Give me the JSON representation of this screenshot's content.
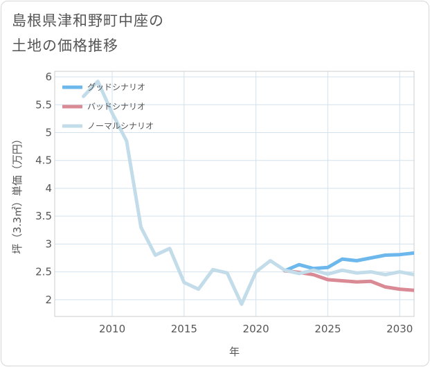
{
  "chart_data": {
    "type": "line",
    "title_line1": "島根県津和野町中座の",
    "title_line2": "土地の価格推移",
    "xlabel": "年",
    "ylabel": "坪（3.3㎡）単価（万円）",
    "xlim": [
      2006,
      2031
    ],
    "ylim": [
      1.7,
      6.1
    ],
    "x_ticks": [
      2010,
      2015,
      2020,
      2025,
      2030
    ],
    "y_ticks": [
      2,
      2.5,
      3,
      3.5,
      4,
      4.5,
      5,
      5.5,
      6
    ],
    "grid": true,
    "legend_position": "top-left",
    "series": [
      {
        "name": "グッドシナリオ",
        "color": "#6cb8ec",
        "x": [
          2022,
          2023,
          2024,
          2025,
          2026,
          2027,
          2028,
          2029,
          2030,
          2031
        ],
        "y": [
          2.52,
          2.63,
          2.56,
          2.58,
          2.73,
          2.7,
          2.75,
          2.8,
          2.81,
          2.84
        ]
      },
      {
        "name": "バッドシナリオ",
        "color": "#d98a94",
        "x": [
          2022,
          2023,
          2024,
          2025,
          2026,
          2027,
          2028,
          2029,
          2030,
          2031
        ],
        "y": [
          2.52,
          2.49,
          2.45,
          2.36,
          2.34,
          2.32,
          2.33,
          2.23,
          2.19,
          2.17
        ]
      },
      {
        "name": "ノーマルシナリオ",
        "color": "#c3dcea",
        "x": [
          2008,
          2009,
          2010,
          2011,
          2012,
          2013,
          2014,
          2015,
          2016,
          2017,
          2018,
          2019,
          2020,
          2021,
          2022,
          2023,
          2024,
          2025,
          2026,
          2027,
          2028,
          2029,
          2030,
          2031
        ],
        "y": [
          5.65,
          5.92,
          5.35,
          4.85,
          3.3,
          2.8,
          2.92,
          2.31,
          2.19,
          2.54,
          2.48,
          1.92,
          2.5,
          2.7,
          2.53,
          2.47,
          2.53,
          2.46,
          2.53,
          2.48,
          2.5,
          2.45,
          2.5,
          2.45
        ]
      }
    ]
  }
}
